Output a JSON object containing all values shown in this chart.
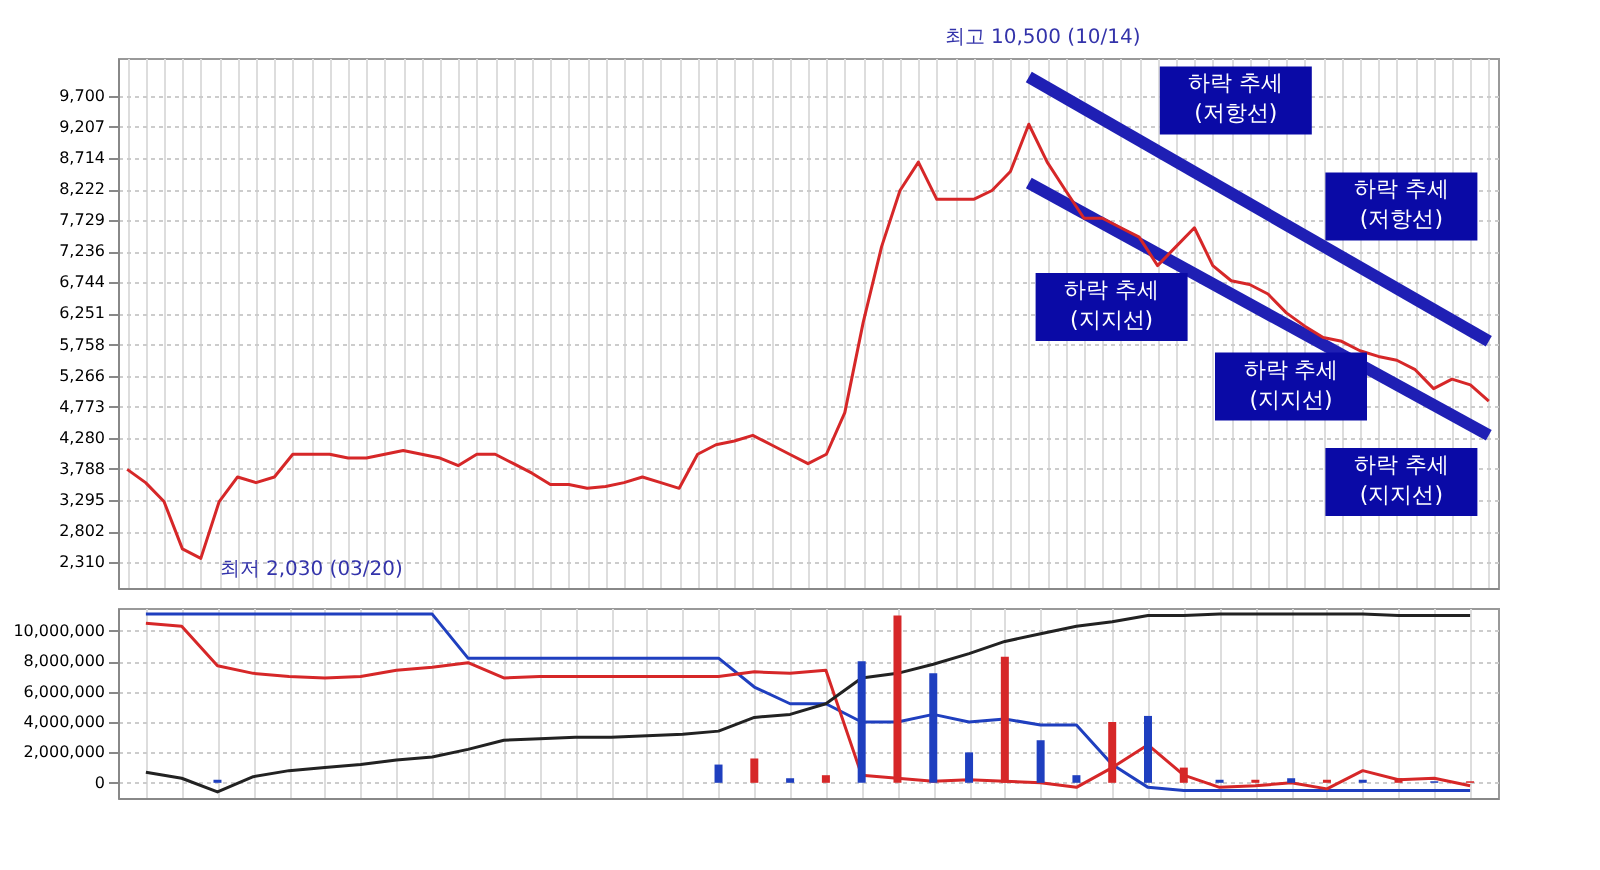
{
  "chart_data": [
    {
      "type": "line",
      "categories": [
        null,
        null,
        null,
        null,
        null,
        null,
        null,
        null,
        null,
        null,
        null,
        null,
        null,
        null,
        null,
        null,
        null,
        null,
        null,
        null,
        null,
        null,
        null,
        null,
        null,
        null,
        null,
        null,
        null,
        null,
        null,
        null,
        null,
        null,
        null,
        null,
        null,
        null,
        null,
        null,
        null,
        null,
        null,
        null,
        null,
        null,
        null,
        null,
        null,
        null,
        null,
        null,
        null,
        null,
        null,
        null,
        null,
        null,
        null,
        null,
        null,
        null,
        null,
        null,
        null,
        null,
        null,
        null,
        null,
        null,
        null,
        null,
        null,
        null,
        null
      ],
      "series": [
        {
          "color": "#d62728",
          "values": [
            3780,
            3570,
            3270,
            2520,
            2370,
            3270,
            3660,
            3570,
            3660,
            4020,
            4020,
            4020,
            3960,
            3960,
            4020,
            4080,
            4020,
            3960,
            3840,
            4020,
            4020,
            3870,
            3720,
            3540,
            3540,
            3480,
            3510,
            3570,
            3660,
            3570,
            3480,
            4020,
            4170,
            4230,
            4320,
            4170,
            4020,
            3870,
            4020,
            4680,
            6110,
            7310,
            8200,
            8650,
            8060,
            8060,
            8060,
            8200,
            8500,
            9250,
            8650,
            8200,
            7760,
            7760,
            7610,
            7460,
            7010,
            7310,
            7610,
            7010,
            6770,
            6710,
            6560,
            6260,
            6050,
            5870,
            5810,
            5660,
            5570,
            5510,
            5360,
            5060,
            5210,
            5120,
            4860
          ]
        },
        {
          "color": "#1f1fb4",
          "values": [
            null,
            null,
            null,
            null,
            null,
            null,
            null,
            null,
            null,
            null,
            null,
            null,
            null,
            null,
            null,
            null,
            null,
            null,
            null,
            null,
            null,
            null,
            null,
            null,
            null,
            null,
            null,
            null,
            null,
            null,
            null,
            null,
            null,
            null,
            null,
            null,
            null,
            null,
            null,
            null,
            null,
            null,
            null,
            null,
            null,
            null,
            null,
            null,
            null,
            10000,
            null,
            null,
            null,
            null,
            null,
            null,
            null,
            null,
            null,
            null,
            null,
            null,
            null,
            null,
            null,
            null,
            null,
            null,
            null,
            null,
            null,
            null,
            null,
            null,
            5810
          ]
        },
        {
          "color": "#1f1fb4",
          "values": [
            null,
            null,
            null,
            null,
            null,
            null,
            null,
            null,
            null,
            null,
            null,
            null,
            null,
            null,
            null,
            null,
            null,
            null,
            null,
            null,
            null,
            null,
            null,
            null,
            null,
            null,
            null,
            null,
            null,
            null,
            null,
            null,
            null,
            null,
            null,
            null,
            null,
            null,
            null,
            null,
            null,
            null,
            null,
            null,
            null,
            null,
            null,
            null,
            null,
            8320,
            null,
            null,
            null,
            null,
            null,
            null,
            null,
            null,
            null,
            null,
            null,
            null,
            null,
            null,
            null,
            null,
            null,
            null,
            null,
            null,
            null,
            null,
            null,
            null,
            4320
          ]
        }
      ],
      "ylim": [
        1900,
        10300
      ],
      "yticks": [
        {
          "value": 2310,
          "label": "2,310"
        },
        {
          "value": 2802,
          "label": "2,802"
        },
        {
          "value": 3295,
          "label": "3,295"
        },
        {
          "value": 3788,
          "label": "3,788"
        },
        {
          "value": 4280,
          "label": "4,280"
        },
        {
          "value": 4773,
          "label": "4,773"
        },
        {
          "value": 5266,
          "label": "5,266"
        },
        {
          "value": 5758,
          "label": "5,758"
        },
        {
          "value": 6251,
          "label": "6,251"
        },
        {
          "value": 6744,
          "label": "6,744"
        },
        {
          "value": 7236,
          "label": "7,236"
        },
        {
          "value": 7729,
          "label": "7,729"
        },
        {
          "value": 8222,
          "label": "8,222"
        },
        {
          "value": 8714,
          "label": "8,714"
        },
        {
          "value": 9207,
          "label": "9,207"
        },
        {
          "value": 9700,
          "label": "9,700"
        }
      ],
      "grid": true,
      "tick_labels": "y",
      "annotations": [
        "최고 10,500 (10/14)",
        "최저 2,030 (03/20)",
        "하락 추세\n(저항선)",
        "하락 추세\n(저항선)",
        "하락 추세\n(지지선)",
        "하락 추세\n(지지선)",
        "하락 추세\n(지지선)"
      ]
    },
    {
      "type": "line",
      "categories": [
        null,
        null,
        null,
        null,
        null,
        null,
        null,
        null,
        null,
        null,
        null,
        null,
        null,
        null,
        null,
        null,
        null,
        null,
        null,
        null,
        null,
        null,
        null,
        null,
        null,
        null,
        null,
        null,
        null,
        null,
        null,
        null,
        null,
        null,
        null,
        null,
        null,
        null
      ],
      "series": [
        {
          "type": "bar",
          "colors": [
            "#d62728",
            "#d62728",
            "#1f3fbf",
            "#d62728",
            "#1f3fbf",
            "#d62728",
            "#1f3fbf",
            "#d62728",
            "#1f3fbf",
            "#d62728",
            "#d62728",
            "#1f3fbf",
            "#d62728",
            "#1f3fbf",
            "#d62728",
            "#d62728",
            "#1f3fbf",
            "#d62728",
            "#1f3fbf",
            "#d62728",
            "#1f3fbf",
            "#d62728",
            "#1f3fbf",
            "#1f3fbf",
            "#d62728",
            "#1f3fbf",
            "#1f3fbf",
            "#d62728",
            "#1f3fbf",
            "#d62728",
            "#1f3fbf",
            "#d62728",
            "#1f3fbf",
            "#d62728",
            "#1f3fbf",
            "#d62728",
            "#1f3fbf",
            "#d62728"
          ],
          "values": [
            0,
            0,
            200000,
            0,
            0,
            0,
            0,
            0,
            0,
            0,
            0,
            0,
            0,
            0,
            0,
            0,
            1200000,
            1600000,
            300000,
            500000,
            8000000,
            11000000,
            7200000,
            2000000,
            8300000,
            2800000,
            500000,
            4000000,
            4400000,
            1000000,
            200000,
            200000,
            300000,
            200000,
            200000,
            300000,
            100000,
            100000
          ]
        },
        {
          "color": "#222222",
          "values": [
            700000,
            300000,
            -600000,
            400000,
            800000,
            1000000,
            1200000,
            1500000,
            1700000,
            2200000,
            2800000,
            2900000,
            3000000,
            3000000,
            3100000,
            3200000,
            3400000,
            4300000,
            4500000,
            5200000,
            6900000,
            7200000,
            7800000,
            8500000,
            9300000,
            9800000,
            10300000,
            10600000,
            11000000,
            11000000,
            11100000,
            11100000,
            11100000,
            11100000,
            11100000,
            11000000,
            11000000,
            11000000
          ]
        },
        {
          "color": "#d62728",
          "values": [
            10500000,
            10300000,
            7700000,
            7200000,
            7000000,
            6900000,
            7000000,
            7400000,
            7600000,
            7900000,
            6900000,
            7000000,
            7000000,
            7000000,
            7000000,
            7000000,
            7000000,
            7300000,
            7200000,
            7400000,
            500000,
            300000,
            100000,
            200000,
            100000,
            0,
            -300000,
            1000000,
            2500000,
            500000,
            -300000,
            -200000,
            0,
            -400000,
            800000,
            200000,
            300000,
            -200000
          ]
        },
        {
          "color": "#1f3fbf",
          "values": [
            11100000,
            11100000,
            11100000,
            11100000,
            11100000,
            11100000,
            11100000,
            11100000,
            11100000,
            8200000,
            8200000,
            8200000,
            8200000,
            8200000,
            8200000,
            8200000,
            8200000,
            6300000,
            5200000,
            5200000,
            4000000,
            4000000,
            4500000,
            4000000,
            4200000,
            3800000,
            3800000,
            1200000,
            -300000,
            -500000,
            -500000,
            -500000,
            -500000,
            -500000,
            -500000,
            -500000,
            -500000,
            -500000
          ]
        }
      ],
      "ylim": [
        -1000000,
        11500000
      ],
      "yticks": [
        {
          "value": 0,
          "label": "0"
        },
        {
          "value": 2000000,
          "label": "2,000,000"
        },
        {
          "value": 4000000,
          "label": "4,000,000"
        },
        {
          "value": 6000000,
          "label": "6,000,000"
        },
        {
          "value": 8000000,
          "label": "8,000,000"
        },
        {
          "value": 10000000,
          "label": "10,000,000"
        }
      ],
      "grid": true,
      "tick_labels": "y"
    }
  ]
}
